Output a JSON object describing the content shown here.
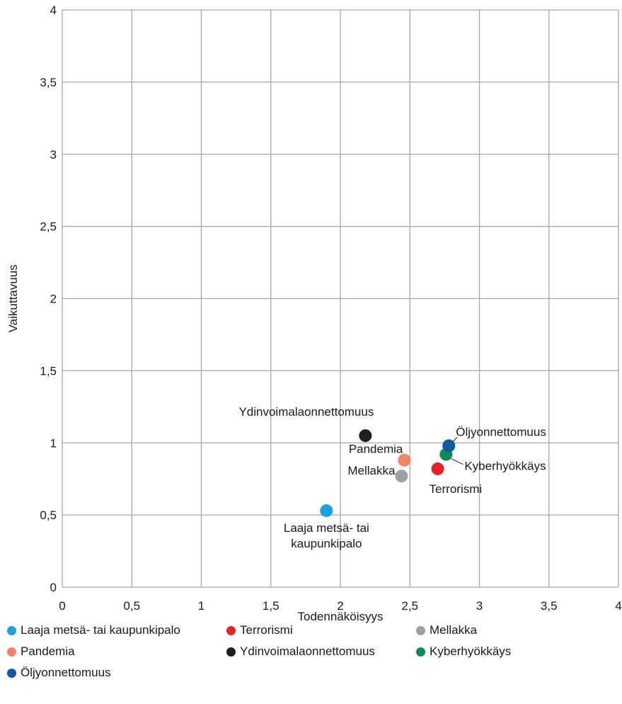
{
  "chart_data": {
    "type": "scatter",
    "xlabel": "Todennäköisyys",
    "ylabel": "Vaikuttavuus",
    "xlim": [
      0,
      4
    ],
    "ylim": [
      0,
      4
    ],
    "x_ticks": [
      "0",
      "0,5",
      "1",
      "1,5",
      "2",
      "2,5",
      "3",
      "3,5",
      "4"
    ],
    "y_ticks": [
      "0",
      "0,5",
      "1",
      "1,5",
      "2",
      "2,5",
      "3",
      "3,5",
      "4"
    ],
    "grid": true,
    "legend_position": "bottom",
    "series": [
      {
        "name": "Laaja metsä- tai  kaupunkipalo",
        "label": "Laaja metsä- tai\nkaupunkipalo",
        "x": 1.9,
        "y": 0.53,
        "color": "#1ca1dc"
      },
      {
        "name": "Terrorismi",
        "label": "Terrorismi",
        "x": 2.7,
        "y": 0.82,
        "color": "#e8202a"
      },
      {
        "name": "Mellakka",
        "label": "Mellakka",
        "x": 2.44,
        "y": 0.77,
        "color": "#9aa0a6"
      },
      {
        "name": "Pandemia",
        "label": "Pandemia",
        "x": 2.46,
        "y": 0.88,
        "color": "#f08462"
      },
      {
        "name": "Ydinvoimalaonnettomuus",
        "label": "Ydinvoimalaonnettomuus",
        "x": 2.18,
        "y": 1.05,
        "color": "#1e1e1e"
      },
      {
        "name": "Kyberhyökkäys",
        "label": "Kyberhyökkäys",
        "x": 2.76,
        "y": 0.92,
        "color": "#0d8a55"
      },
      {
        "name": "Öljyonnettomuus",
        "label": "Öljyonnettomuus",
        "x": 2.78,
        "y": 0.98,
        "color": "#0c5aa0"
      }
    ]
  }
}
